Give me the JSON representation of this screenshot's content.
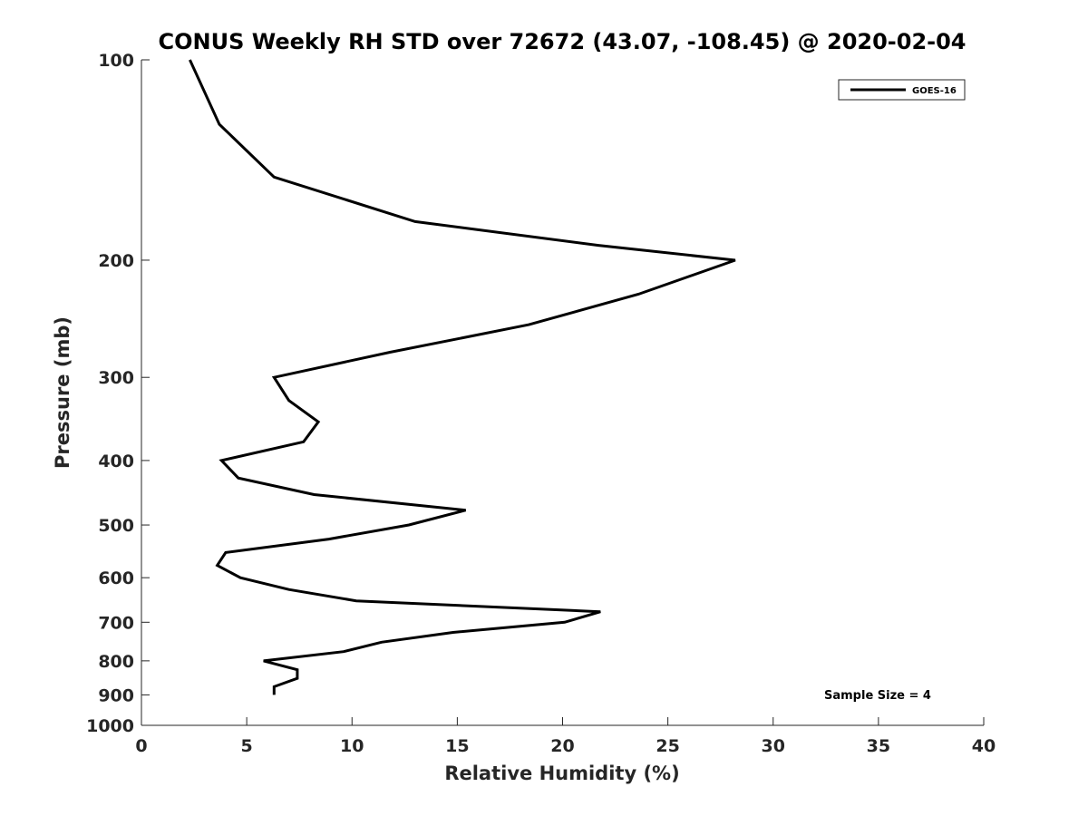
{
  "chart_data": {
    "type": "line",
    "title": "CONUS Weekly RH STD over 72672 (43.07, -108.45) @ 2020-02-04",
    "xlabel": "Relative Humidity (%)",
    "ylabel": "Pressure (mb)",
    "xlim": [
      0,
      40
    ],
    "ylim": [
      100,
      1000
    ],
    "y_scale": "log",
    "y_reversed": false,
    "x_ticks": [
      0,
      5,
      10,
      15,
      20,
      25,
      30,
      35,
      40
    ],
    "y_ticks": [
      100,
      200,
      300,
      400,
      500,
      600,
      700,
      800,
      900,
      1000
    ],
    "grid": false,
    "legend_position": "top-right",
    "series": [
      {
        "name": "GOES-16",
        "color": "#000000",
        "points": [
          {
            "x": 2.3,
            "y": 100
          },
          {
            "x": 3.7,
            "y": 125
          },
          {
            "x": 6.3,
            "y": 150
          },
          {
            "x": 13.0,
            "y": 175
          },
          {
            "x": 21.7,
            "y": 190
          },
          {
            "x": 28.2,
            "y": 200
          },
          {
            "x": 23.6,
            "y": 225
          },
          {
            "x": 18.4,
            "y": 250
          },
          {
            "x": 11.8,
            "y": 275
          },
          {
            "x": 6.3,
            "y": 300
          },
          {
            "x": 7.0,
            "y": 325
          },
          {
            "x": 8.4,
            "y": 350
          },
          {
            "x": 7.7,
            "y": 375
          },
          {
            "x": 3.8,
            "y": 400
          },
          {
            "x": 4.6,
            "y": 425
          },
          {
            "x": 8.2,
            "y": 450
          },
          {
            "x": 15.4,
            "y": 475
          },
          {
            "x": 12.7,
            "y": 500
          },
          {
            "x": 8.9,
            "y": 525
          },
          {
            "x": 4.0,
            "y": 550
          },
          {
            "x": 3.6,
            "y": 575
          },
          {
            "x": 4.7,
            "y": 600
          },
          {
            "x": 7.0,
            "y": 625
          },
          {
            "x": 10.2,
            "y": 650
          },
          {
            "x": 21.8,
            "y": 675
          },
          {
            "x": 20.1,
            "y": 700
          },
          {
            "x": 14.8,
            "y": 725
          },
          {
            "x": 11.4,
            "y": 750
          },
          {
            "x": 9.6,
            "y": 775
          },
          {
            "x": 5.8,
            "y": 800
          },
          {
            "x": 7.4,
            "y": 825
          },
          {
            "x": 7.4,
            "y": 850
          },
          {
            "x": 6.3,
            "y": 875
          },
          {
            "x": 6.3,
            "y": 900
          }
        ]
      }
    ],
    "annotation": "Sample Size = 4"
  }
}
